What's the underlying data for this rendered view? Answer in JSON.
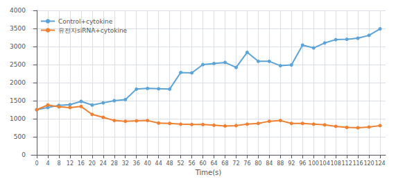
{
  "chart_data": {
    "type": "line",
    "xlabel": "Time(s)",
    "x": [
      0,
      4,
      8,
      12,
      16,
      20,
      24,
      28,
      32,
      36,
      40,
      44,
      48,
      52,
      56,
      60,
      64,
      68,
      72,
      76,
      80,
      84,
      88,
      92,
      96,
      100,
      104,
      108,
      112,
      116,
      120,
      124
    ],
    "series": [
      {
        "name": "Control+cytokine",
        "color": "#5ba3d9",
        "values": [
          1250,
          1310,
          1370,
          1390,
          1480,
          1380,
          1440,
          1500,
          1530,
          1820,
          1840,
          1830,
          1820,
          2280,
          2270,
          2500,
          2530,
          2560,
          2420,
          2840,
          2590,
          2590,
          2470,
          2490,
          3040,
          2960,
          3100,
          3190,
          3200,
          3230,
          3310,
          3490
        ]
      },
      {
        "name": "유전자siRNA+cytokine",
        "color": "#f08030",
        "values": [
          1250,
          1380,
          1330,
          1310,
          1340,
          1120,
          1040,
          950,
          930,
          940,
          950,
          880,
          870,
          850,
          840,
          840,
          820,
          800,
          810,
          850,
          870,
          930,
          950,
          870,
          870,
          850,
          830,
          790,
          760,
          750,
          770,
          810
        ]
      }
    ],
    "xlim": [
      -2,
      126
    ],
    "xticks": [
      0,
      4,
      8,
      12,
      16,
      20,
      24,
      28,
      32,
      36,
      40,
      44,
      48,
      52,
      56,
      60,
      64,
      68,
      72,
      76,
      80,
      84,
      88,
      92,
      96,
      100,
      104,
      108,
      112,
      116,
      120,
      124
    ],
    "ylim": [
      0,
      4000
    ],
    "yticks": [
      0,
      500,
      1000,
      1500,
      2000,
      2500,
      3000,
      3500,
      4000
    ],
    "grid": true,
    "legend": "upper left",
    "marker": "circle"
  }
}
